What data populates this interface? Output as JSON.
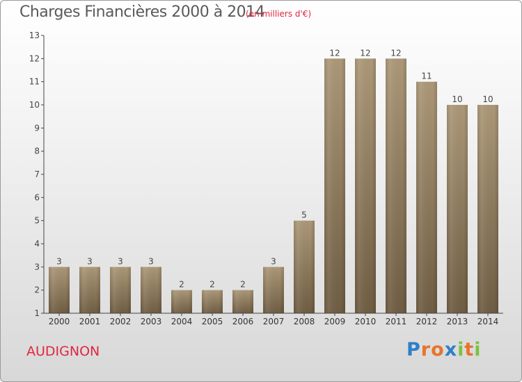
{
  "header": {
    "title": "Charges Financières 2000 à 2014",
    "subtitle": "(en milliers d'€)"
  },
  "footer": {
    "commune": "AUDIGNON",
    "logo_letters": [
      "P",
      "r",
      "o",
      "x",
      "i",
      "t",
      "i"
    ],
    "logo_colors": [
      "#2e7fc8",
      "#e8742a",
      "#e8742a",
      "#2e7fc8",
      "#7cc242",
      "#e8742a",
      "#7cc242"
    ]
  },
  "chart_data": {
    "type": "bar",
    "categories": [
      "2000",
      "2001",
      "2002",
      "2003",
      "2004",
      "2005",
      "2006",
      "2007",
      "2008",
      "2009",
      "2010",
      "2011",
      "2012",
      "2013",
      "2014"
    ],
    "values": [
      3,
      3,
      3,
      3,
      2,
      2,
      2,
      3,
      5,
      12,
      12,
      12,
      11,
      10,
      10
    ],
    "title": "Charges Financières 2000 à 2014",
    "subtitle": "(en milliers d'€)",
    "ylim": [
      1,
      13
    ],
    "yticks": [
      1,
      2,
      3,
      4,
      5,
      6,
      7,
      8,
      9,
      10,
      11,
      12,
      13
    ],
    "grid": false,
    "data_labels": true,
    "bar_color_top": "#ac9878",
    "bar_color_bottom": "#6f5d43"
  }
}
